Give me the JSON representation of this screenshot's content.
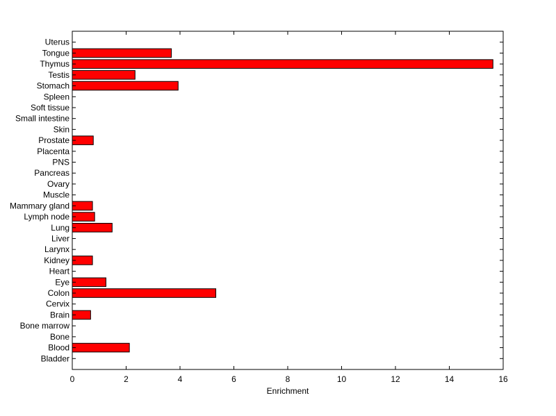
{
  "chart_data": {
    "type": "bar",
    "orientation": "horizontal",
    "title": "",
    "xlabel": "Enrichment",
    "ylabel": "",
    "xlim": [
      0,
      16
    ],
    "xticks": [
      0,
      2,
      4,
      6,
      8,
      10,
      12,
      14,
      16
    ],
    "grid": false,
    "legend": "none",
    "bar_color": "#ff0000",
    "bar_edge_color": "#000000",
    "categories": [
      "Bladder",
      "Blood",
      "Bone",
      "Bone marrow",
      "Brain",
      "Cervix",
      "Colon",
      "Eye",
      "Heart",
      "Kidney",
      "Larynx",
      "Liver",
      "Lung",
      "Lymph node",
      "Mammary gland",
      "Muscle",
      "Ovary",
      "Pancreas",
      "PNS",
      "Placenta",
      "Prostate",
      "Skin",
      "Small intestine",
      "Soft tissue",
      "Spleen",
      "Stomach",
      "Testis",
      "Thymus",
      "Tongue",
      "Uterus"
    ],
    "values": [
      0,
      2.12,
      0,
      0,
      0.68,
      0,
      5.33,
      1.25,
      0,
      0.75,
      0,
      0,
      1.48,
      0.83,
      0.75,
      0,
      0,
      0,
      0,
      0,
      0.78,
      0,
      0,
      0,
      0,
      3.93,
      2.33,
      15.62,
      3.68,
      0
    ]
  }
}
